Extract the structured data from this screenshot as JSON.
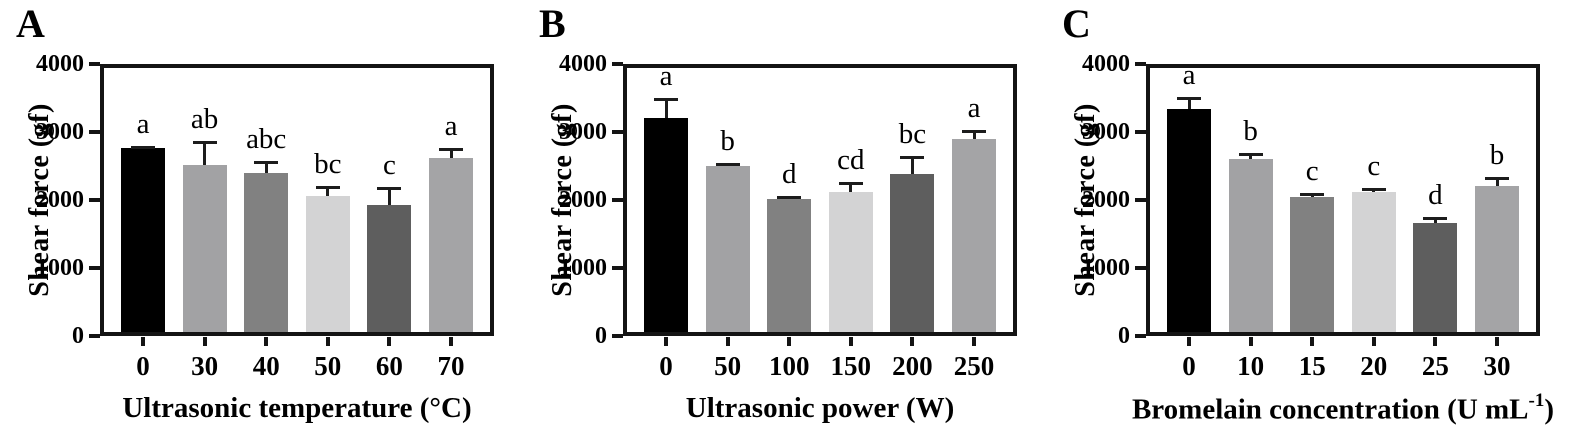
{
  "figure": {
    "background": "#ffffff",
    "axis_color": "#141414",
    "error_bar_color": "#1c1c1c",
    "bar_palette": [
      "#000000",
      "#a2a2a4",
      "#818181",
      "#d3d3d4",
      "#5e5e5e",
      "#a4a4a6"
    ]
  },
  "chart_data": [
    {
      "type": "bar",
      "panel": "A",
      "title": "",
      "xlabel": "Ultrasonic temperature (°C)",
      "ylabel": "Shear force (gf)",
      "ylim": [
        0,
        4000
      ],
      "yticks": [
        "0",
        "1000",
        "2000",
        "3000",
        "4000"
      ],
      "grid": false,
      "legend": "none",
      "categories": [
        "0",
        "30",
        "40",
        "50",
        "60",
        "70"
      ],
      "values": [
        2760,
        2510,
        2400,
        2060,
        1920,
        2620
      ],
      "errors_plus": [
        40,
        355,
        180,
        150,
        265,
        150
      ],
      "sig_letters": [
        "a",
        "ab",
        "abc",
        "bc",
        "c",
        "a"
      ],
      "bar_colors": [
        "#000000",
        "#a2a2a4",
        "#818181",
        "#d3d3d4",
        "#5e5e5e",
        "#a4a4a6"
      ]
    },
    {
      "type": "bar",
      "panel": "B",
      "title": "",
      "xlabel": "Ultrasonic power (W)",
      "ylabel": "Shear force (gf)",
      "ylim": [
        0,
        4000
      ],
      "yticks": [
        "0",
        "1000",
        "2000",
        "3000",
        "4000"
      ],
      "grid": false,
      "legend": "none",
      "categories": [
        "0",
        "50",
        "100",
        "150",
        "200",
        "250"
      ],
      "values": [
        3210,
        2500,
        2010,
        2120,
        2380,
        2900
      ],
      "errors_plus": [
        290,
        45,
        55,
        140,
        260,
        135
      ],
      "sig_letters": [
        "a",
        "b",
        "d",
        "cd",
        "bc",
        "a"
      ],
      "bar_colors": [
        "#000000",
        "#a2a2a4",
        "#818181",
        "#d3d3d4",
        "#5e5e5e",
        "#a4a4a6"
      ]
    },
    {
      "type": "bar",
      "panel": "C",
      "title": "",
      "xlabel": "Bromelain concentration (U mL⁻¹)",
      "xlabel_parts": [
        {
          "t": "Bromelain concentration (U mL"
        },
        {
          "t": "-1",
          "sup": true
        },
        {
          "t": ")"
        }
      ],
      "ylabel": "Shear force (gf)",
      "ylim": [
        0,
        4000
      ],
      "yticks": [
        "0",
        "1000",
        "2000",
        "3000",
        "4000"
      ],
      "grid": false,
      "legend": "none",
      "categories": [
        "0",
        "10",
        "15",
        "20",
        "25",
        "30"
      ],
      "values": [
        3340,
        2610,
        2040,
        2120,
        1660,
        2210
      ],
      "errors_plus": [
        175,
        75,
        70,
        50,
        90,
        135
      ],
      "sig_letters": [
        "a",
        "b",
        "c",
        "c",
        "d",
        "b"
      ],
      "bar_colors": [
        "#000000",
        "#a2a2a4",
        "#818181",
        "#d3d3d4",
        "#5e5e5e",
        "#a4a4a6"
      ]
    }
  ]
}
